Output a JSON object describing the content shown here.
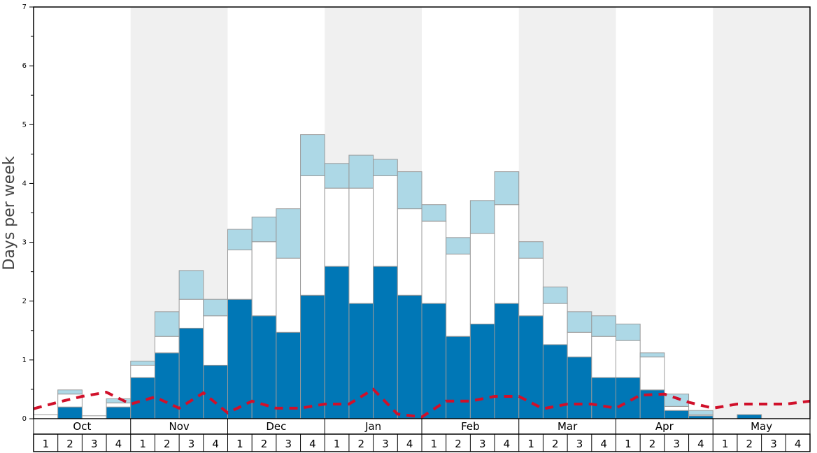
{
  "chart_data": {
    "type": "bar",
    "ylabel": "Days per week",
    "ylim": [
      0,
      7
    ],
    "y_ticks": [
      0,
      1,
      2,
      3,
      4,
      5,
      6,
      7
    ],
    "grid": false,
    "legend": "none",
    "months": [
      "Oct",
      "Nov",
      "Dec",
      "Jan",
      "Feb",
      "Mar",
      "Apr",
      "May"
    ],
    "week_labels": [
      "1",
      "2",
      "3",
      "4"
    ],
    "colors": {
      "dark": "#0077b6",
      "white": "#ffffff",
      "light": "#add8e6",
      "line": "#d0102a",
      "shade": "#f0f0f0",
      "border": "#999999"
    },
    "series": [
      {
        "values_dark": [
          0,
          0.2,
          0,
          0.2,
          0.7,
          1.12,
          1.54,
          0.91,
          2.03,
          1.75,
          1.47,
          2.1,
          2.59,
          1.96,
          2.59,
          2.1,
          1.96,
          1.4,
          1.61,
          1.96,
          1.75,
          1.26,
          1.05,
          0.7,
          0.7,
          0.49,
          0.14,
          0.05,
          0,
          0.07,
          0,
          0
        ],
        "values_white": [
          0.07,
          0.22,
          0.05,
          0.07,
          0.21,
          0.28,
          0.49,
          0.84,
          0.84,
          1.26,
          1.26,
          2.03,
          1.33,
          1.96,
          1.54,
          1.47,
          1.4,
          1.4,
          1.54,
          1.68,
          0.98,
          0.7,
          0.42,
          0.7,
          0.63,
          0.56,
          0.07,
          0.02,
          0,
          0,
          0,
          0
        ],
        "values_light": [
          0,
          0.07,
          0,
          0.07,
          0.07,
          0.42,
          0.49,
          0.28,
          0.35,
          0.42,
          0.84,
          0.7,
          0.42,
          0.56,
          0.28,
          0.63,
          0.28,
          0.28,
          0.56,
          0.56,
          0.28,
          0.28,
          0.35,
          0.35,
          0.28,
          0.07,
          0.21,
          0.07,
          0,
          0,
          0,
          0
        ]
      }
    ],
    "line_values": [
      0.17,
      0.28,
      0.38,
      0.45,
      0.25,
      0.37,
      0.18,
      0.44,
      0.1,
      0.3,
      0.18,
      0.18,
      0.25,
      0.25,
      0.5,
      0.08,
      0.03,
      0.3,
      0.3,
      0.38,
      0.38,
      0.17,
      0.25,
      0.25,
      0.18,
      0.4,
      0.42,
      0.28,
      0.18,
      0.25,
      0.25,
      0.25,
      0.3
    ]
  }
}
